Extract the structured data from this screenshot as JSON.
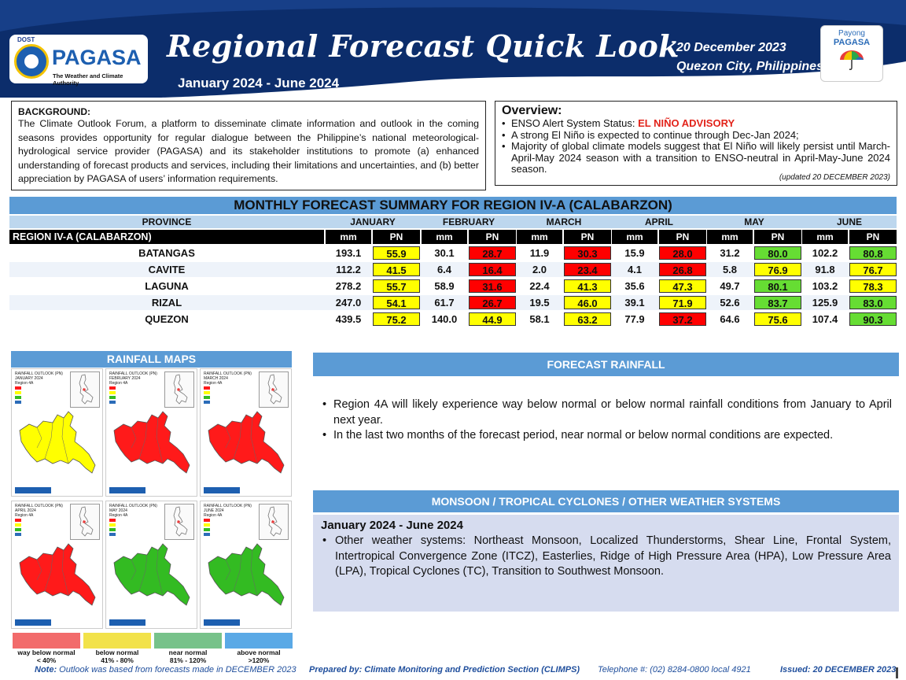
{
  "header": {
    "dost": "DOST",
    "agency": "PAGASA",
    "agency_tagline": "The Weather and Climate Authority",
    "title": "Regional Forecast Quick Look",
    "period": "January 2024 - June 2024",
    "date": "20 December 2023",
    "place": "Quezon City, Philippines",
    "payong_line1": "Payong",
    "payong_line2": "PAGASA",
    "band_color": "#0c2d6b"
  },
  "background": {
    "heading": "BACKGROUND:",
    "text": "The Climate Outlook Forum, a platform to disseminate climate information and outlook in the coming seasons provides opportunity for regular dialogue between the Philippine’s national meteorological-hydrological service provider (PAGASA) and its stakeholder institutions to promote (a) enhanced understanding of forecast products and services, including their limitations and uncertainties, and (b) better appreciation by PAGASA of users’ information requirements."
  },
  "overview": {
    "heading": "Overview:",
    "item1_prefix": "ENSO Alert System Status: ",
    "item1_highlight": "EL NIÑO ADVISORY",
    "item2": "A strong El Niño is expected to continue through Dec-Jan 2024;",
    "item3": "Majority of global climate models suggest that El Niño will likely persist until March-April-May 2024 season with a transition to ENSO-neutral in April-May-June 2024 season.",
    "updated": "(updated 20 DECEMBER 2023)"
  },
  "table": {
    "title": "MONTHLY FORECAST SUMMARY FOR REGION IV-A  (CALABARZON)",
    "province_header": "PROVINCE",
    "region_label": "REGION IV-A  (CALABARZON)",
    "months": [
      "JANUARY",
      "FEBRUARY",
      "MARCH",
      "APRIL",
      "MAY",
      "JUNE"
    ],
    "mm_label": "mm",
    "pn_label": "PN",
    "rows": [
      {
        "province": "BATANGAS",
        "values": [
          [
            "193.1",
            "55.9"
          ],
          [
            "30.1",
            "28.7"
          ],
          [
            "11.9",
            "30.3"
          ],
          [
            "15.9",
            "28.0"
          ],
          [
            "31.2",
            "80.0"
          ],
          [
            "102.2",
            "80.8"
          ]
        ],
        "colors": [
          "#ffff00",
          "#ff0000",
          "#ff0000",
          "#ff0000",
          "#66dd33",
          "#66dd33"
        ]
      },
      {
        "province": "CAVITE",
        "values": [
          [
            "112.2",
            "41.5"
          ],
          [
            "6.4",
            "16.4"
          ],
          [
            "2.0",
            "23.4"
          ],
          [
            "4.1",
            "26.8"
          ],
          [
            "5.8",
            "76.9"
          ],
          [
            "91.8",
            "76.7"
          ]
        ],
        "colors": [
          "#ffff00",
          "#ff0000",
          "#ff0000",
          "#ff0000",
          "#ffff00",
          "#ffff00"
        ]
      },
      {
        "province": "LAGUNA",
        "values": [
          [
            "278.2",
            "55.7"
          ],
          [
            "58.9",
            "31.6"
          ],
          [
            "22.4",
            "41.3"
          ],
          [
            "35.6",
            "47.3"
          ],
          [
            "49.7",
            "80.1"
          ],
          [
            "103.2",
            "78.3"
          ]
        ],
        "colors": [
          "#ffff00",
          "#ff0000",
          "#ffff00",
          "#ffff00",
          "#66dd33",
          "#ffff00"
        ]
      },
      {
        "province": "RIZAL",
        "values": [
          [
            "247.0",
            "54.1"
          ],
          [
            "61.7",
            "26.7"
          ],
          [
            "19.5",
            "46.0"
          ],
          [
            "39.1",
            "71.9"
          ],
          [
            "52.6",
            "83.7"
          ],
          [
            "125.9",
            "83.0"
          ]
        ],
        "colors": [
          "#ffff00",
          "#ff0000",
          "#ffff00",
          "#ffff00",
          "#66dd33",
          "#66dd33"
        ]
      },
      {
        "province": "QUEZON",
        "values": [
          [
            "439.5",
            "75.2"
          ],
          [
            "140.0",
            "44.9"
          ],
          [
            "58.1",
            "63.2"
          ],
          [
            "77.9",
            "37.2"
          ],
          [
            "64.6",
            "75.6"
          ],
          [
            "107.4",
            "90.3"
          ]
        ],
        "colors": [
          "#ffff00",
          "#ffff00",
          "#ffff00",
          "#ff0000",
          "#ffff00",
          "#66dd33"
        ]
      }
    ]
  },
  "maps": {
    "title": "RAINFALL MAPS",
    "panels": [
      {
        "title": "RAINFALL OUTLOOK (PN)",
        "month": "JANUARY 2024",
        "region": "Region 4A",
        "color": "#ffff00"
      },
      {
        "title": "RAINFALL OUTLOOK (PN)",
        "month": "FEBRUARY 2024",
        "region": "Region 4A",
        "color": "#ff1a1a"
      },
      {
        "title": "RAINFALL OUTLOOK (PN)",
        "month": "MARCH 2024",
        "region": "Region 4A",
        "color": "#ff1a1a"
      },
      {
        "title": "RAINFALL OUTLOOK (PN)",
        "month": "APRIL 2024",
        "region": "Region 4A",
        "color": "#ff1a1a"
      },
      {
        "title": "RAINFALL OUTLOOK (PN)",
        "month": "MAY 2024",
        "region": "Region 4A",
        "color": "#33bb22"
      },
      {
        "title": "RAINFALL OUTLOOK (PN)",
        "month": "JUNE 2024",
        "region": "Region 4A",
        "color": "#33bb22"
      }
    ],
    "legend": [
      {
        "label1": "way below normal",
        "label2": "< 40%",
        "color": "#f26b6b"
      },
      {
        "label1": "below normal",
        "label2": "41%  -  80%",
        "color": "#f2e24a"
      },
      {
        "label1": "near normal",
        "label2": "81% - 120%",
        "color": "#77c28a"
      },
      {
        "label1": "above normal",
        "label2": ">120%",
        "color": "#5aa9e6"
      }
    ]
  },
  "forecast_rainfall": {
    "title": "FORECAST RAINFALL",
    "items": [
      "Region 4A will likely experience way below normal or below normal rainfall conditions from January to April next year.",
      "In the last two months of the forecast period, near normal or below normal conditions are expected."
    ]
  },
  "monsoon": {
    "title": "MONSOON  / TROPICAL CYCLONES / OTHER WEATHER SYSTEMS",
    "period": "January 2024 - June 2024",
    "item": "Other weather systems: Northeast Monsoon, Localized Thunderstorms, Shear Line, Frontal System, Intertropical Convergence Zone (ITCZ), Easterlies, Ridge of High Pressure Area (HPA), Low Pressure Area (LPA), Tropical Cyclones (TC), Transition to Southwest Monsoon."
  },
  "footer": {
    "note_label": "Note:",
    "note": " Outlook was based from forecasts made in DECEMBER 2023",
    "prepared": "Prepared by: Climate Monitoring and Prediction Section (CLIMPS)",
    "telephone": "Telephone #: (02) 8284-0800 local 4921",
    "issued": "Issued: 20 DECEMBER 2023"
  }
}
